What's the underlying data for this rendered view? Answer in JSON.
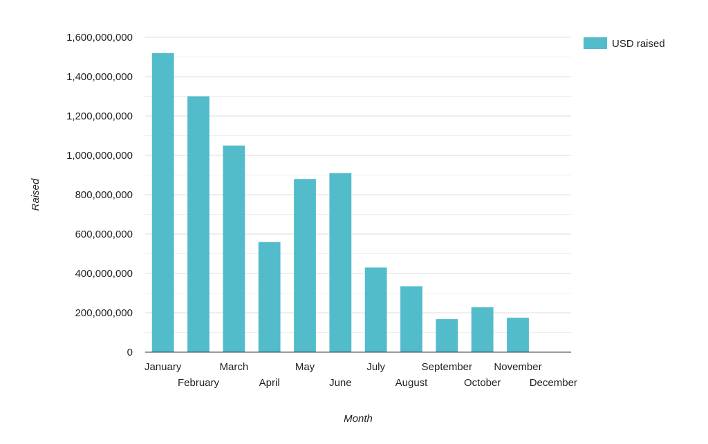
{
  "chart_data": {
    "type": "bar",
    "categories": [
      "January",
      "February",
      "March",
      "April",
      "May",
      "June",
      "July",
      "August",
      "September",
      "October",
      "November",
      "December"
    ],
    "series": [
      {
        "name": "USD raised",
        "values": [
          1520000000,
          1300000000,
          1050000000,
          560000000,
          880000000,
          910000000,
          430000000,
          335000000,
          168000000,
          228000000,
          175000000,
          0
        ]
      }
    ],
    "xlabel": "Month",
    "ylabel": "Raised",
    "ylim": [
      0,
      1600000000
    ],
    "yticks": [
      {
        "value": 0,
        "label": "0"
      },
      {
        "value": 200000000,
        "label": "200,000,000"
      },
      {
        "value": 400000000,
        "label": "400,000,000"
      },
      {
        "value": 600000000,
        "label": "600,000,000"
      },
      {
        "value": 800000000,
        "label": "800,000,000"
      },
      {
        "value": 1000000000,
        "label": "1,000,000,000"
      },
      {
        "value": 1200000000,
        "label": "1,200,000,000"
      },
      {
        "value": 1400000000,
        "label": "1,400,000,000"
      },
      {
        "value": 1600000000,
        "label": "1,600,000,000"
      }
    ],
    "grid": true,
    "legend_position": "top-right",
    "colors": {
      "bar": "#53bccb",
      "grid": "#dddddd",
      "axis": "#333333"
    }
  }
}
